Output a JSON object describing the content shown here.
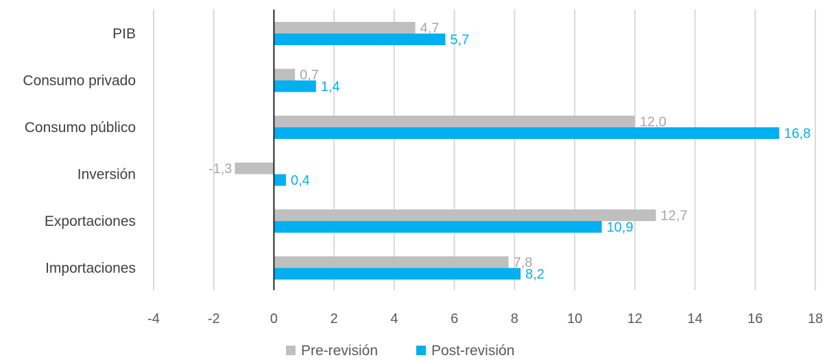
{
  "chart_data": {
    "type": "bar",
    "orientation": "horizontal",
    "categories": [
      "PIB",
      "Consumo privado",
      "Consumo público",
      "Inversión",
      "Exportaciones",
      "Importaciones"
    ],
    "series": [
      {
        "name": "Pre-revisión",
        "color": "#bfbfbf",
        "values": [
          4.7,
          0.7,
          12.0,
          -1.3,
          12.7,
          7.8
        ],
        "labels": [
          "4,7",
          "0,7",
          "12,0",
          "-1,3",
          "12,7",
          "7,8"
        ]
      },
      {
        "name": "Post-revisión",
        "color": "#00b0f0",
        "values": [
          5.7,
          1.4,
          16.8,
          0.4,
          10.9,
          8.2
        ],
        "labels": [
          "5,7",
          "1,4",
          "16,8",
          "0,4",
          "10,9",
          "8,2"
        ]
      }
    ],
    "xlim": [
      -4,
      18
    ],
    "ticks": [
      -4,
      -2,
      0,
      2,
      4,
      6,
      8,
      10,
      12,
      14,
      16,
      18
    ],
    "tick_labels": [
      "-4",
      "-2",
      "0",
      "2",
      "4",
      "6",
      "8",
      "10",
      "12",
      "14",
      "16",
      "18"
    ],
    "grid": true,
    "legend_position": "bottom"
  }
}
